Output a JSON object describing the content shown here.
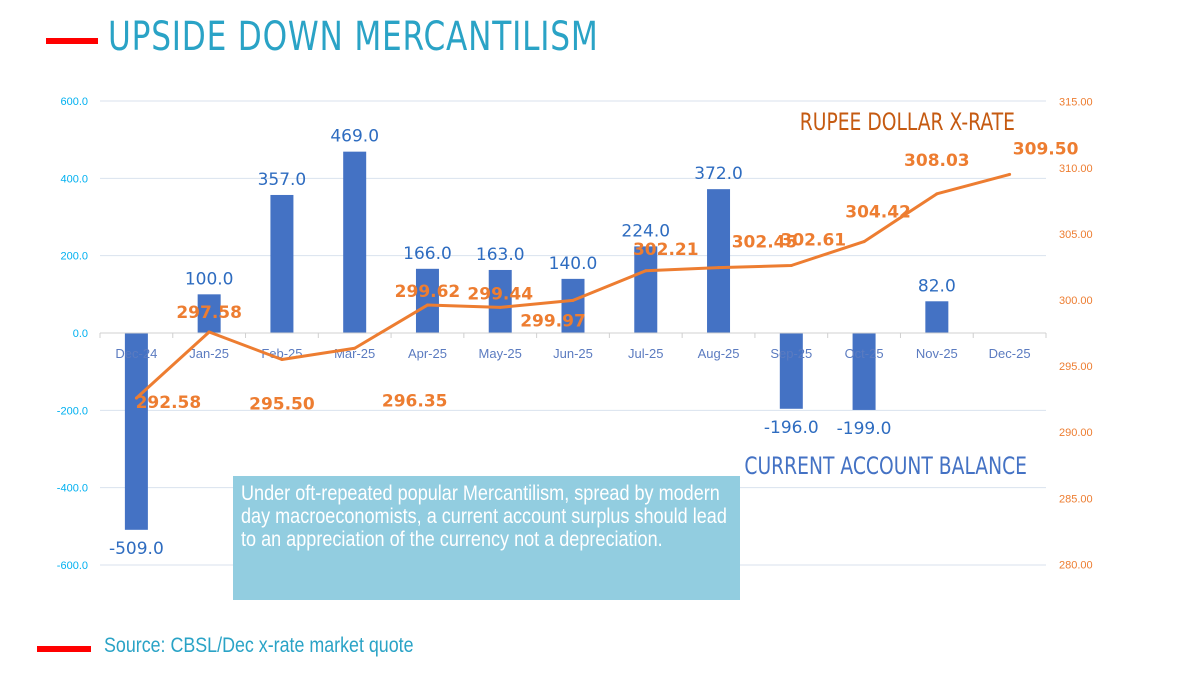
{
  "title": "UPSIDE DOWN MERCANTILISM",
  "source": "Source: CBSL/Dec x-rate market quote",
  "note": "Under oft-repeated popular Mercantilism, spread by modern day macroeconomists, a current account surplus should lead to an appreciation of the currency not a depreciation.",
  "colors": {
    "accent_red": "#ff0000",
    "title": "#2aa3c6",
    "bars": "#4472c4",
    "line": "#ed7d31",
    "left_axis": "#00b0f0",
    "note_bg": "#92cde0"
  },
  "chart_data": {
    "type": "bar+line",
    "categories": [
      "Dec-24",
      "Jan-25",
      "Feb-25",
      "Mar-25",
      "Apr-25",
      "May-25",
      "Jun-25",
      "Jul-25",
      "Aug-25",
      "Sep-25",
      "Oct-25",
      "Nov-25",
      "Dec-25"
    ],
    "series": [
      {
        "name": "CURRENT ACCOUNT BALANCE",
        "type": "bar",
        "axis": "left",
        "values": [
          -509.0,
          100.0,
          357.0,
          469.0,
          166.0,
          163.0,
          140.0,
          224.0,
          372.0,
          -196.0,
          -199.0,
          82.0,
          null
        ],
        "labels": [
          "-509.0",
          "100.0",
          "357.0",
          "469.0",
          "166.0",
          "163.0",
          "140.0",
          "224.0",
          "372.0",
          "-196.0",
          "-199.0",
          "82.0",
          ""
        ]
      },
      {
        "name": "RUPEE DOLLAR X-RATE",
        "type": "line",
        "axis": "right",
        "values": [
          292.58,
          297.58,
          295.5,
          296.35,
          299.62,
          299.44,
          299.97,
          302.21,
          302.45,
          302.61,
          304.42,
          308.03,
          309.5
        ],
        "labels": [
          "292.58",
          "297.58",
          "295.50",
          "296.35",
          "299.62",
          "299.44",
          "299.97",
          "302.21",
          "302.45",
          "302.61",
          "304.42",
          "308.03",
          "309.50"
        ]
      }
    ],
    "left_axis": {
      "ylim": [
        -600,
        600
      ],
      "ticks": [
        "-600.0",
        "-400.0",
        "-200.0",
        "0.0",
        "200.0",
        "400.0",
        "600.0"
      ]
    },
    "right_axis": {
      "ylim": [
        280,
        315
      ],
      "ticks": [
        "280.00",
        "285.00",
        "290.00",
        "295.00",
        "300.00",
        "305.00",
        "310.00",
        "315.00"
      ]
    },
    "grid": true
  }
}
